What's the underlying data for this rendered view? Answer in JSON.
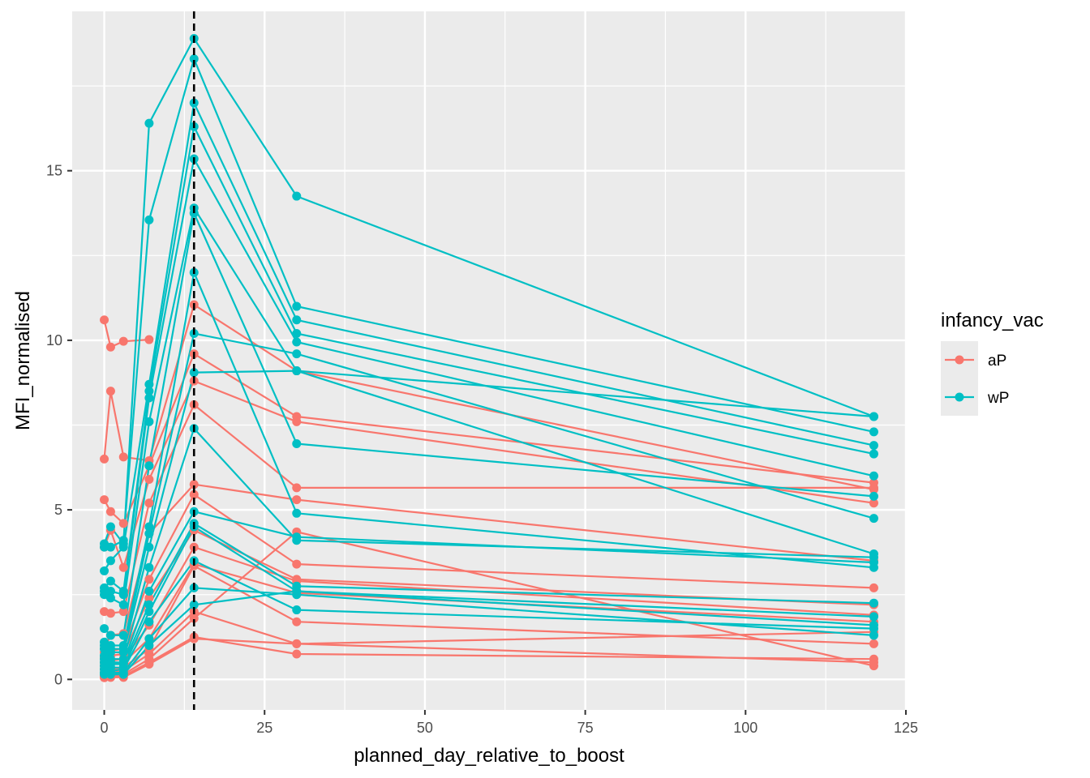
{
  "chart_data": {
    "type": "line",
    "xlabel": "planned_day_relative_to_boost",
    "ylabel": "MFI_normalised",
    "xlim": [
      -5,
      125
    ],
    "ylim": [
      -0.9,
      19.7
    ],
    "x_ticks": [
      0,
      25,
      50,
      75,
      100,
      125
    ],
    "y_ticks": [
      0,
      5,
      10,
      15
    ],
    "grid": true,
    "vline": {
      "x": 14,
      "style": "dashed",
      "color": "#000000"
    },
    "legend": {
      "title": "infancy_vac",
      "placement": "right",
      "entries": [
        {
          "label": "aP",
          "color": "#F8766D"
        },
        {
          "label": "wP",
          "color": "#00BFC4"
        }
      ]
    },
    "series": [
      {
        "group": "aP",
        "points": [
          [
            0,
            10.6
          ],
          [
            1,
            9.8
          ],
          [
            3,
            9.97
          ],
          [
            7,
            10.02
          ]
        ]
      },
      {
        "group": "aP",
        "points": [
          [
            0,
            6.5
          ],
          [
            1,
            8.5
          ],
          [
            3,
            6.56
          ],
          [
            7,
            6.45
          ],
          [
            14,
            11.05
          ],
          [
            30,
            9.1
          ],
          [
            120,
            5.6
          ]
        ]
      },
      {
        "group": "aP",
        "points": [
          [
            0,
            5.3
          ],
          [
            1,
            4.95
          ],
          [
            3,
            4.6
          ],
          [
            7,
            6.3
          ],
          [
            14,
            9.6
          ],
          [
            30,
            7.75
          ],
          [
            120,
            5.8
          ]
        ]
      },
      {
        "group": "aP",
        "points": [
          [
            0,
            3.9
          ],
          [
            1,
            4.4
          ],
          [
            3,
            3.3
          ],
          [
            7,
            5.9
          ],
          [
            14,
            8.8
          ],
          [
            30,
            7.6
          ],
          [
            120,
            5.2
          ]
        ]
      },
      {
        "group": "aP",
        "points": [
          [
            0,
            2.0
          ],
          [
            1,
            1.95
          ],
          [
            3,
            2.0
          ],
          [
            7,
            5.2
          ],
          [
            14,
            8.1
          ],
          [
            30,
            5.65
          ],
          [
            120,
            5.65
          ]
        ]
      },
      {
        "group": "aP",
        "points": [
          [
            0,
            0.9
          ],
          [
            1,
            1.3
          ],
          [
            3,
            1.35
          ],
          [
            7,
            4.3
          ],
          [
            14,
            5.75
          ],
          [
            30,
            5.3
          ],
          [
            120,
            3.5
          ]
        ]
      },
      {
        "group": "aP",
        "points": [
          [
            0,
            0.8
          ],
          [
            1,
            0.85
          ],
          [
            3,
            0.9
          ],
          [
            7,
            2.95
          ],
          [
            14,
            5.45
          ],
          [
            30,
            3.4
          ],
          [
            120,
            2.7
          ]
        ]
      },
      {
        "group": "aP",
        "points": [
          [
            0,
            0.65
          ],
          [
            1,
            0.7
          ],
          [
            3,
            0.75
          ],
          [
            7,
            2.4
          ],
          [
            14,
            4.4
          ],
          [
            30,
            2.95
          ],
          [
            120,
            2.2
          ]
        ]
      },
      {
        "group": "aP",
        "points": [
          [
            0,
            0.5
          ],
          [
            1,
            0.55
          ],
          [
            3,
            0.6
          ],
          [
            7,
            1.6
          ],
          [
            14,
            3.9
          ],
          [
            30,
            2.9
          ],
          [
            120,
            1.9
          ]
        ]
      },
      {
        "group": "aP",
        "points": [
          [
            0,
            0.4
          ],
          [
            1,
            0.45
          ],
          [
            3,
            0.5
          ],
          [
            7,
            1.2
          ],
          [
            14,
            3.4
          ],
          [
            30,
            2.55
          ],
          [
            120,
            1.7
          ]
        ]
      },
      {
        "group": "aP",
        "points": [
          [
            0,
            0.3
          ],
          [
            1,
            0.3
          ],
          [
            3,
            0.35
          ],
          [
            7,
            0.9
          ],
          [
            14,
            3.35
          ],
          [
            30,
            1.7
          ],
          [
            120,
            1.05
          ]
        ]
      },
      {
        "group": "aP",
        "points": [
          [
            0,
            0.2
          ],
          [
            1,
            0.2
          ],
          [
            3,
            0.25
          ],
          [
            7,
            0.75
          ],
          [
            14,
            2.0
          ],
          [
            30,
            1.05
          ],
          [
            120,
            0.5
          ]
        ]
      },
      {
        "group": "aP",
        "points": [
          [
            0,
            0.12
          ],
          [
            1,
            0.12
          ],
          [
            3,
            0.15
          ],
          [
            7,
            0.6
          ],
          [
            14,
            1.8
          ],
          [
            30,
            4.35
          ],
          [
            120,
            0.4
          ]
        ]
      },
      {
        "group": "aP",
        "points": [
          [
            0,
            0.08
          ],
          [
            1,
            0.08
          ],
          [
            3,
            0.1
          ],
          [
            7,
            0.5
          ],
          [
            14,
            1.25
          ],
          [
            30,
            0.75
          ],
          [
            120,
            0.6
          ]
        ]
      },
      {
        "group": "aP",
        "points": [
          [
            0,
            0.05
          ],
          [
            1,
            0.06
          ],
          [
            3,
            0.06
          ],
          [
            7,
            0.45
          ],
          [
            14,
            1.2
          ],
          [
            30,
            1.05
          ],
          [
            120,
            1.4
          ]
        ]
      },
      {
        "group": "wP",
        "points": [
          [
            0,
            4.0
          ],
          [
            1,
            4.5
          ],
          [
            3,
            4.0
          ],
          [
            7,
            16.4
          ],
          [
            14,
            18.9
          ],
          [
            30,
            14.25
          ],
          [
            120,
            7.75
          ]
        ]
      },
      {
        "group": "wP",
        "points": [
          [
            0,
            3.9
          ],
          [
            1,
            3.9
          ],
          [
            3,
            4.1
          ],
          [
            7,
            13.55
          ],
          [
            14,
            18.3
          ],
          [
            30,
            11.0
          ],
          [
            120,
            7.3
          ]
        ]
      },
      {
        "group": "wP",
        "points": [
          [
            0,
            3.2
          ],
          [
            1,
            3.5
          ],
          [
            3,
            3.9
          ],
          [
            7,
            8.7
          ],
          [
            14,
            17.0
          ],
          [
            30,
            10.6
          ],
          [
            120,
            6.9
          ]
        ]
      },
      {
        "group": "wP",
        "points": [
          [
            0,
            2.7
          ],
          [
            1,
            2.9
          ],
          [
            3,
            2.6
          ],
          [
            7,
            8.5
          ],
          [
            14,
            16.3
          ],
          [
            30,
            10.2
          ],
          [
            120,
            6.65
          ]
        ]
      },
      {
        "group": "wP",
        "points": [
          [
            0,
            2.6
          ],
          [
            1,
            2.6
          ],
          [
            3,
            2.5
          ],
          [
            7,
            8.3
          ],
          [
            14,
            15.35
          ],
          [
            30,
            9.95
          ],
          [
            120,
            6.0
          ]
        ]
      },
      {
        "group": "wP",
        "points": [
          [
            0,
            2.5
          ],
          [
            1,
            2.4
          ],
          [
            3,
            2.2
          ],
          [
            7,
            7.6
          ],
          [
            14,
            13.9
          ],
          [
            30,
            9.1
          ],
          [
            120,
            3.7
          ]
        ]
      },
      {
        "group": "wP",
        "points": [
          [
            0,
            1.5
          ],
          [
            1,
            1.3
          ],
          [
            3,
            1.3
          ],
          [
            7,
            6.3
          ],
          [
            14,
            13.75
          ],
          [
            30,
            6.95
          ],
          [
            120,
            5.4
          ]
        ]
      },
      {
        "group": "wP",
        "points": [
          [
            0,
            1.1
          ],
          [
            1,
            1.0
          ],
          [
            3,
            1.0
          ],
          [
            7,
            4.5
          ],
          [
            14,
            12.0
          ],
          [
            30,
            4.9
          ],
          [
            120,
            3.3
          ]
        ]
      },
      {
        "group": "wP",
        "points": [
          [
            0,
            1.0
          ],
          [
            1,
            0.9
          ],
          [
            3,
            0.9
          ],
          [
            7,
            4.3
          ],
          [
            14,
            10.2
          ],
          [
            30,
            9.6
          ],
          [
            120,
            4.75
          ]
        ]
      },
      {
        "group": "wP",
        "points": [
          [
            0,
            0.9
          ],
          [
            1,
            0.8
          ],
          [
            3,
            0.8
          ],
          [
            7,
            3.9
          ],
          [
            14,
            9.05
          ],
          [
            30,
            9.1
          ],
          [
            120,
            7.75
          ]
        ]
      },
      {
        "group": "wP",
        "points": [
          [
            0,
            0.7
          ],
          [
            1,
            0.6
          ],
          [
            3,
            0.6
          ],
          [
            7,
            3.3
          ],
          [
            14,
            7.4
          ],
          [
            30,
            4.1
          ],
          [
            120,
            3.6
          ]
        ]
      },
      {
        "group": "wP",
        "points": [
          [
            0,
            0.6
          ],
          [
            1,
            0.5
          ],
          [
            3,
            0.5
          ],
          [
            7,
            2.6
          ],
          [
            14,
            4.95
          ],
          [
            30,
            4.2
          ],
          [
            120,
            3.45
          ]
        ]
      },
      {
        "group": "wP",
        "points": [
          [
            0,
            0.5
          ],
          [
            1,
            0.45
          ],
          [
            3,
            0.45
          ],
          [
            7,
            2.2
          ],
          [
            14,
            4.6
          ],
          [
            30,
            2.75
          ],
          [
            120,
            2.25
          ]
        ]
      },
      {
        "group": "wP",
        "points": [
          [
            0,
            0.4
          ],
          [
            1,
            0.35
          ],
          [
            3,
            0.35
          ],
          [
            7,
            2.0
          ],
          [
            14,
            4.5
          ],
          [
            30,
            2.6
          ],
          [
            120,
            1.85
          ]
        ]
      },
      {
        "group": "wP",
        "points": [
          [
            0,
            0.3
          ],
          [
            1,
            0.25
          ],
          [
            3,
            0.3
          ],
          [
            7,
            1.7
          ],
          [
            14,
            3.5
          ],
          [
            30,
            2.05
          ],
          [
            120,
            1.5
          ]
        ]
      },
      {
        "group": "wP",
        "points": [
          [
            0,
            0.2
          ],
          [
            1,
            0.2
          ],
          [
            3,
            0.2
          ],
          [
            7,
            1.2
          ],
          [
            14,
            2.7
          ],
          [
            30,
            2.5
          ],
          [
            120,
            1.3
          ]
        ]
      },
      {
        "group": "wP",
        "points": [
          [
            0,
            0.15
          ],
          [
            1,
            0.15
          ],
          [
            3,
            0.15
          ],
          [
            7,
            1.0
          ],
          [
            14,
            2.2
          ],
          [
            30,
            2.6
          ],
          [
            120,
            1.6
          ]
        ]
      }
    ]
  }
}
